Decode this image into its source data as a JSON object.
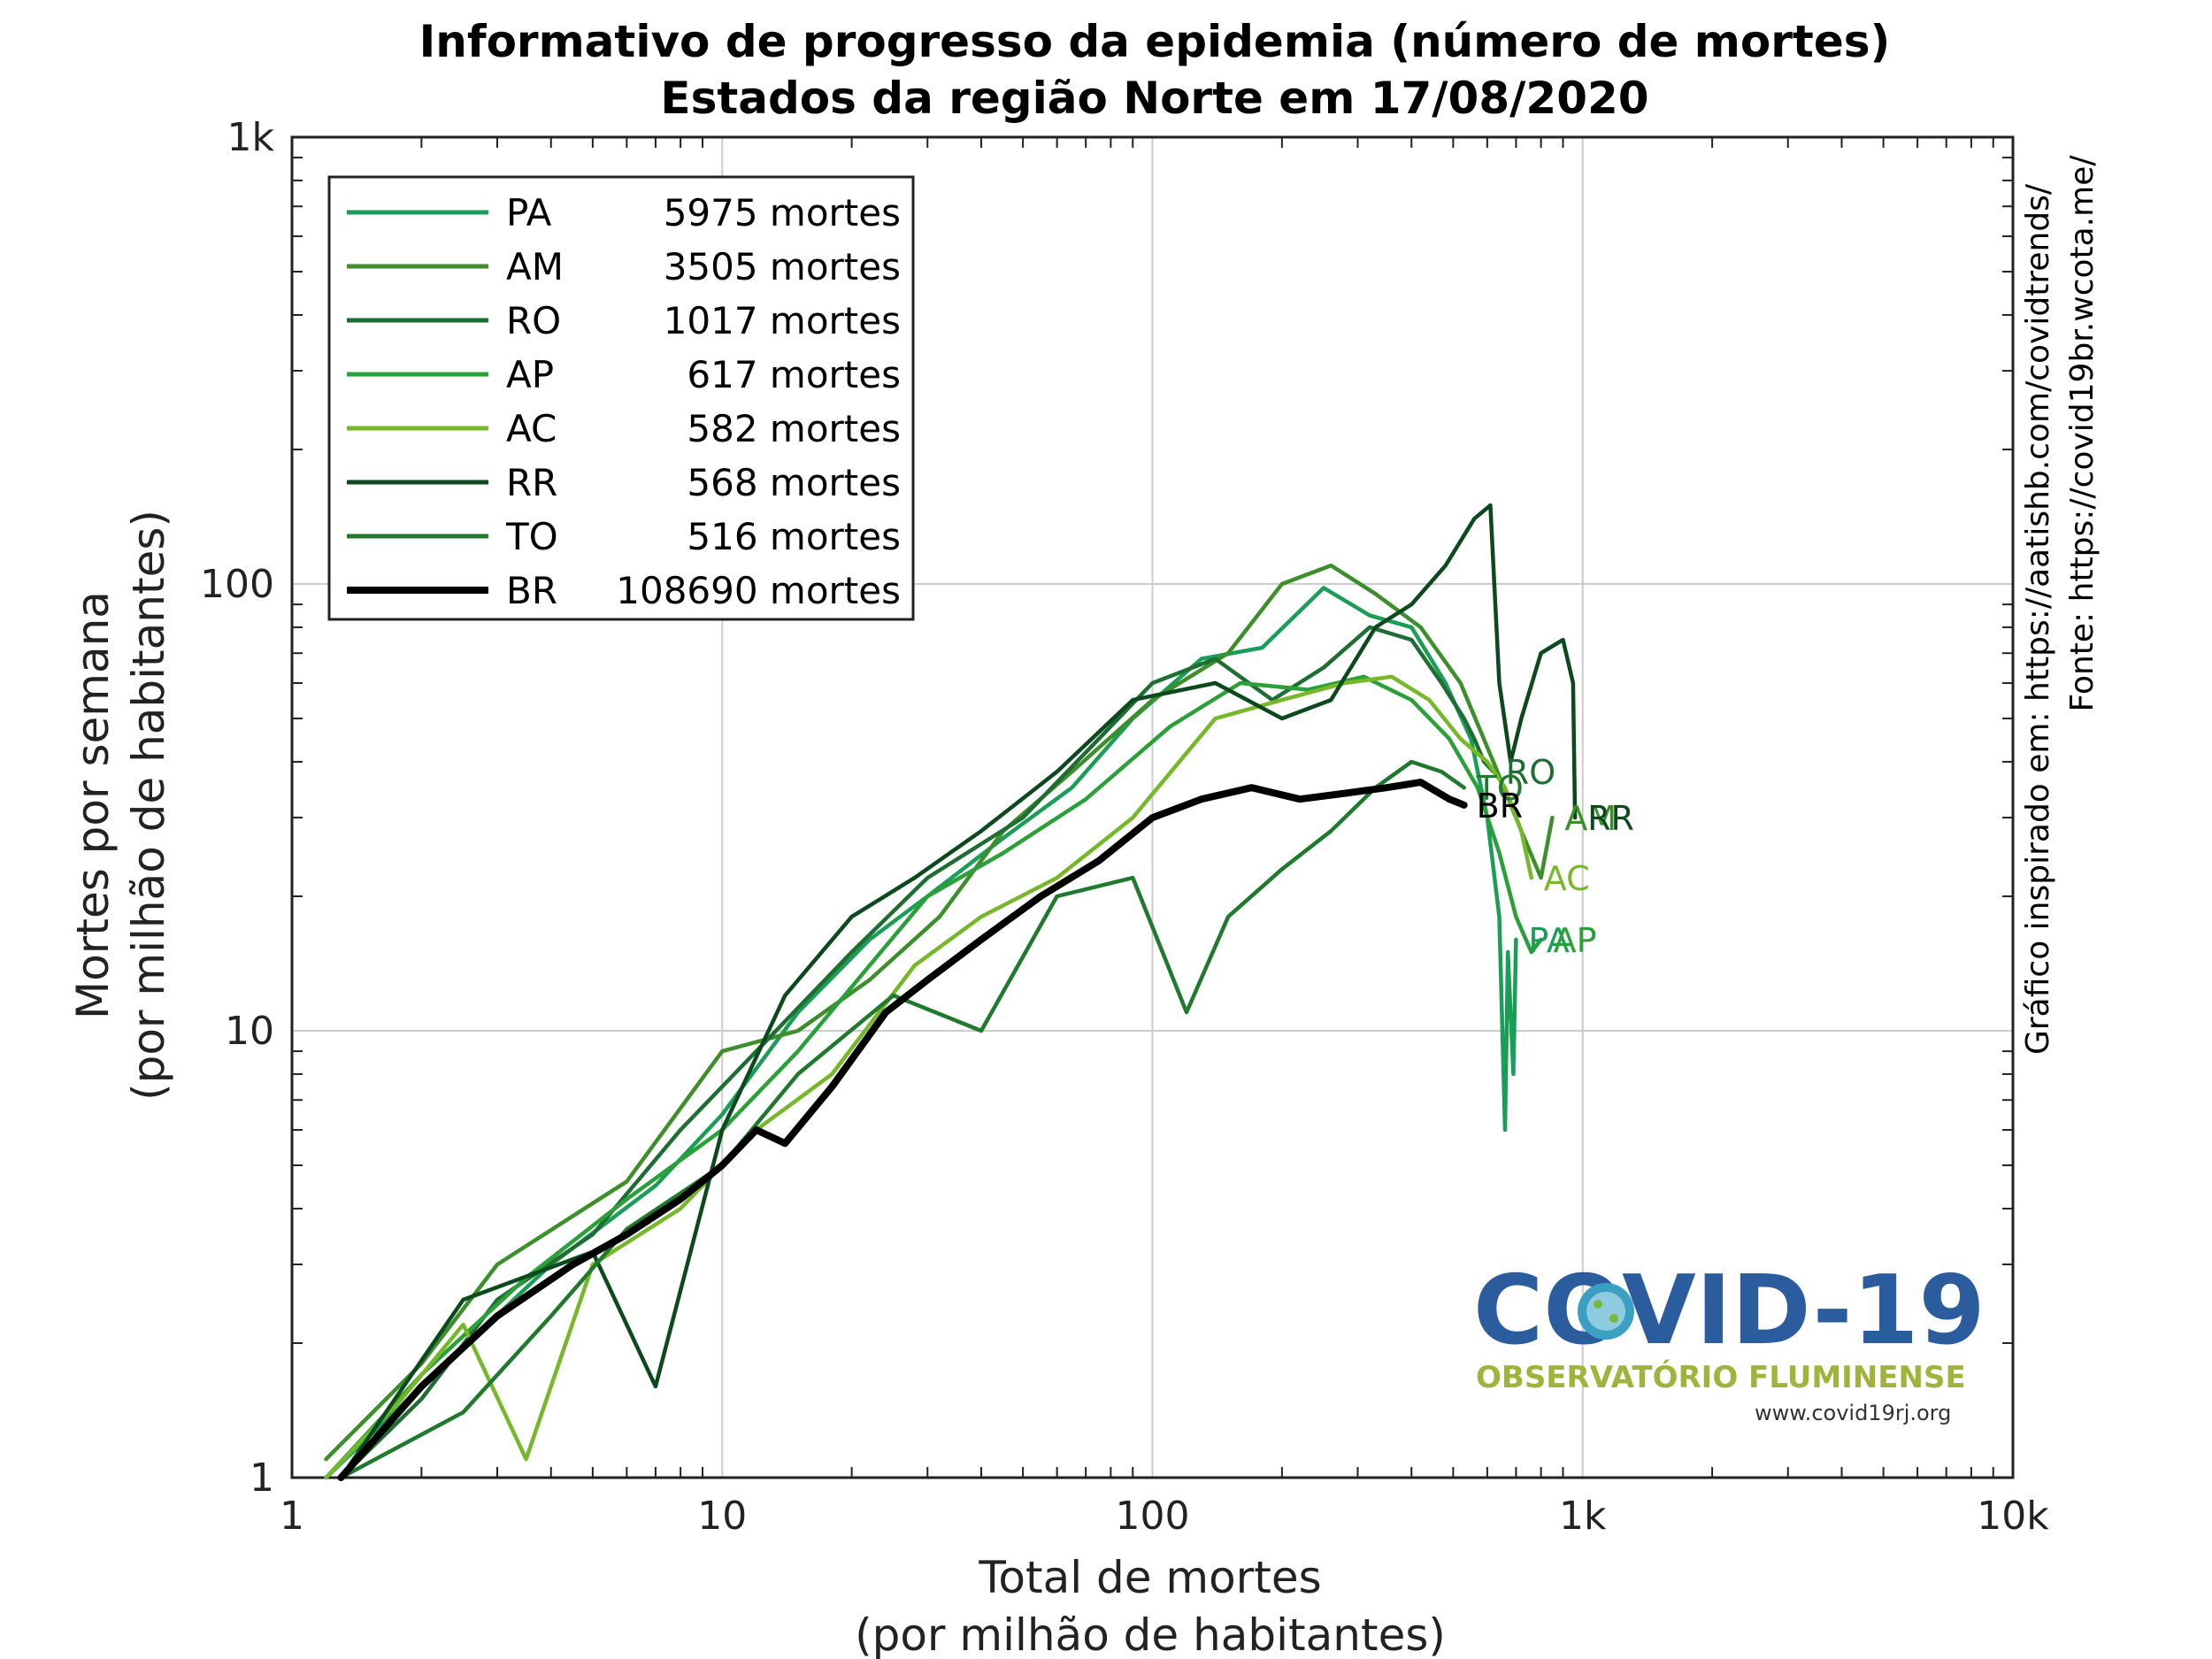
{
  "chart_data": {
    "type": "line",
    "title": "Informativo de progresso da epidemia (número de mortes)",
    "subtitle": "Estados da região Norte em 17/08/2020",
    "xlabel": "Total de mortes",
    "xlabel2": "(por milhão de habitantes)",
    "ylabel": "Mortes por semana",
    "ylabel2": "(por milhão de habitantes)",
    "xscale": "log",
    "yscale": "log",
    "xlim": [
      1,
      10000
    ],
    "ylim": [
      1,
      1000
    ],
    "xticks": [
      1,
      10,
      100,
      1000,
      10000
    ],
    "xtick_labels": [
      "1",
      "10",
      "100",
      "1k",
      "10k"
    ],
    "yticks": [
      1,
      10,
      100,
      1000
    ],
    "ytick_labels": [
      "1",
      "10",
      "100",
      "1k"
    ],
    "grid": true,
    "legend_position": "top-left",
    "series": [
      {
        "name": "PA",
        "legend": "5975 mortes",
        "color": "#1a9e57",
        "end_label": "PA",
        "x": [
          1.2,
          2,
          4,
          7,
          10,
          15,
          22,
          30,
          45,
          65,
          90,
          130,
          180,
          250,
          320,
          400,
          480,
          550,
          600,
          640,
          660,
          670,
          690,
          700
        ],
        "y": [
          1,
          1.6,
          3,
          4.5,
          6.5,
          11,
          16,
          20,
          27,
          35,
          50,
          68,
          72,
          98,
          85,
          80,
          60,
          45,
          30,
          18,
          6,
          15,
          8,
          16
        ]
      },
      {
        "name": "AM",
        "legend": "3505 mortes",
        "color": "#3c8f2a",
        "end_label": "AM",
        "x": [
          1.2,
          2,
          3,
          6,
          10,
          15,
          22,
          32,
          45,
          65,
          100,
          150,
          200,
          260,
          330,
          420,
          520,
          620,
          720,
          800,
          850
        ],
        "y": [
          1.1,
          1.8,
          3,
          4.6,
          9,
          10,
          13,
          18,
          28,
          38,
          55,
          70,
          100,
          110,
          95,
          80,
          60,
          40,
          28,
          22,
          30
        ]
      },
      {
        "name": "RO",
        "legend": "1017 mortes",
        "color": "#1e6e34",
        "end_label": "RO",
        "x": [
          1.3,
          2,
          3,
          5,
          8,
          12,
          20,
          30,
          50,
          70,
          100,
          140,
          190,
          250,
          320,
          400,
          470,
          530,
          560,
          590,
          620
        ],
        "y": [
          1,
          1.5,
          2.5,
          3.5,
          6,
          9,
          15,
          22,
          30,
          42,
          60,
          68,
          55,
          65,
          80,
          75,
          60,
          50,
          45,
          40,
          38
        ]
      },
      {
        "name": "AP",
        "legend": "617 mortes",
        "color": "#2aa038",
        "end_label": "AP",
        "x": [
          1.2,
          2,
          3.5,
          6,
          10,
          15,
          22,
          30,
          45,
          70,
          110,
          160,
          230,
          310,
          400,
          490,
          570,
          640,
          700,
          760,
          800
        ],
        "y": [
          1,
          1.7,
          2.8,
          4.2,
          6,
          9,
          14,
          20,
          25,
          33,
          48,
          60,
          58,
          62,
          55,
          45,
          35,
          25,
          18,
          15,
          16
        ]
      },
      {
        "name": "AC",
        "legend": "582 mortes",
        "color": "#76b82a",
        "end_label": "AC",
        "x": [
          1.2,
          1.8,
          2.5,
          3.5,
          5,
          8,
          12,
          18,
          28,
          40,
          60,
          90,
          140,
          200,
          280,
          360,
          440,
          520,
          600,
          660,
          720,
          760
        ],
        "y": [
          1,
          1.5,
          2.2,
          1.1,
          3,
          4,
          6,
          8,
          14,
          18,
          22,
          30,
          50,
          55,
          60,
          62,
          55,
          45,
          40,
          35,
          28,
          22
        ]
      },
      {
        "name": "RR",
        "legend": "568 mortes",
        "color": "#0c4a1e",
        "end_label": "RR",
        "x": [
          1.3,
          2.5,
          5,
          7,
          10,
          14,
          20,
          28,
          40,
          60,
          90,
          140,
          200,
          260,
          330,
          400,
          480,
          560,
          610,
          640,
          680,
          720,
          800,
          900,
          950,
          960
        ],
        "y": [
          1,
          2.5,
          3.2,
          1.6,
          6,
          12,
          18,
          22,
          28,
          38,
          55,
          60,
          50,
          55,
          80,
          90,
          110,
          140,
          150,
          60,
          40,
          50,
          70,
          75,
          60,
          30
        ]
      },
      {
        "name": "TO",
        "legend": "516 mortes",
        "color": "#1f7a2e",
        "end_label": "TO",
        "x": [
          1.3,
          2.5,
          4,
          6,
          10,
          15,
          25,
          40,
          60,
          90,
          120,
          150,
          200,
          260,
          330,
          400,
          470,
          530
        ],
        "y": [
          1,
          1.4,
          2.3,
          3.6,
          5,
          8,
          12,
          10,
          20,
          22,
          11,
          18,
          23,
          28,
          35,
          40,
          38,
          35
        ]
      },
      {
        "name": "BR",
        "legend": "108690 mortes",
        "color": "#000000",
        "end_label": "BR",
        "thick": true,
        "x": [
          1.3,
          2,
          3,
          4.5,
          6,
          8,
          10,
          12,
          14,
          18,
          24,
          30,
          40,
          55,
          75,
          100,
          130,
          170,
          220,
          280,
          350,
          420,
          490,
          530
        ],
        "y": [
          1,
          1.6,
          2.3,
          3,
          3.5,
          4.2,
          5,
          6,
          5.6,
          7.5,
          11,
          13,
          16,
          20,
          24,
          30,
          33,
          35,
          33,
          34,
          35,
          36,
          33,
          32
        ]
      }
    ]
  },
  "source": {
    "line1": "Gráfico inspirado em: https://aatishb.com/covidtrends/",
    "line2": "Fonte: https://covid19br.wcota.me/"
  },
  "logo": {
    "title": "COVID-19",
    "subtitle": "OBSERVATÓRIO FLUMINENSE",
    "url": "www.covid19rj.org"
  }
}
